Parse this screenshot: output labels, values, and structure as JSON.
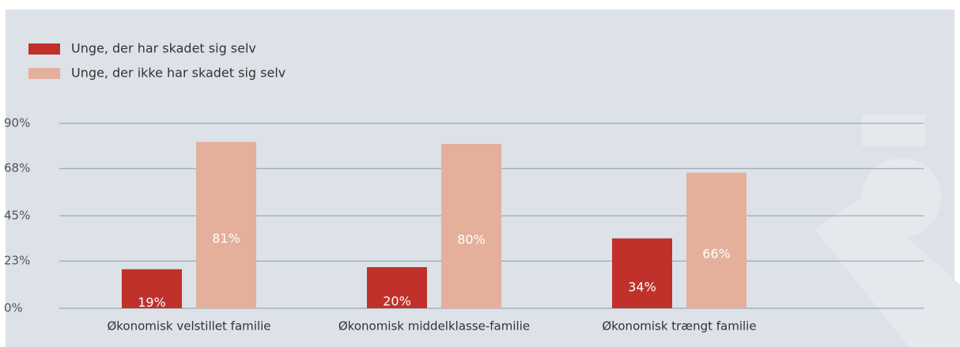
{
  "chart_data": {
    "type": "bar",
    "categories": [
      "Økonomisk velstillet familie",
      "Økonomisk middelklasse-familie",
      "Økonomisk trængt familie"
    ],
    "series": [
      {
        "name": "Unge, der har skadet sig selv",
        "color": "#c0312b",
        "values": [
          19,
          20,
          34
        ],
        "value_labels": [
          "19%",
          "20%",
          "34%"
        ]
      },
      {
        "name": "Unge, der ikke har skadet sig selv",
        "color": "#e4b09b",
        "values": [
          81,
          80,
          66
        ],
        "value_labels": [
          "81%",
          "80%",
          "66%"
        ]
      }
    ],
    "ylim": [
      0,
      90
    ],
    "yticks": [
      {
        "value": 0,
        "label": "0%"
      },
      {
        "value": 23,
        "label": "23%"
      },
      {
        "value": 45,
        "label": "45%"
      },
      {
        "value": 68,
        "label": "68%"
      },
      {
        "value": 90,
        "label": "90%"
      }
    ],
    "grid": true,
    "legend": "top-left"
  }
}
